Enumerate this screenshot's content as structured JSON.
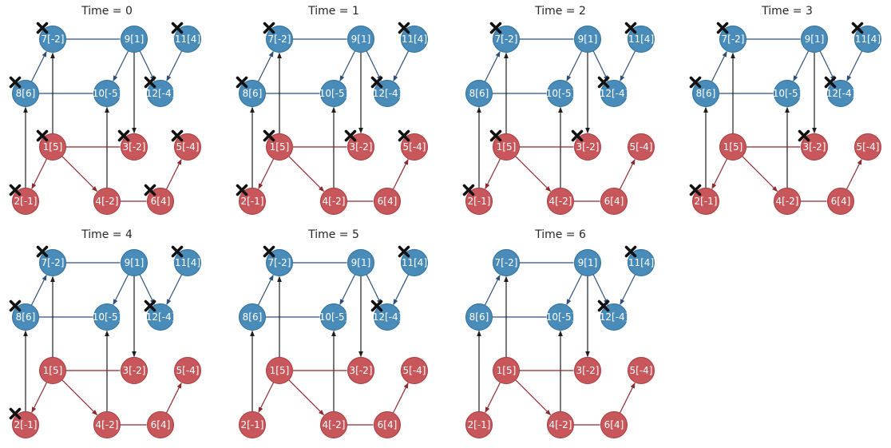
{
  "colors": {
    "blue_node": "#3f86b5",
    "blue_node_stroke": "#2f6e99",
    "red_node": "#c44e52",
    "red_node_stroke": "#a83b3f",
    "blue_edge": "#2c4f7a",
    "red_edge": "#8c2a2e",
    "cross_edge": "#1e1e1e",
    "marker": "#111111",
    "title": "#262626"
  },
  "nodes": [
    {
      "id": "1",
      "label": "1[5]",
      "group": "red"
    },
    {
      "id": "2",
      "label": "2[-1]",
      "group": "red"
    },
    {
      "id": "3",
      "label": "3[-2]",
      "group": "red"
    },
    {
      "id": "4",
      "label": "4[-2]",
      "group": "red"
    },
    {
      "id": "5",
      "label": "5[-4]",
      "group": "red"
    },
    {
      "id": "6",
      "label": "6[4]",
      "group": "red"
    },
    {
      "id": "7",
      "label": "7[-2]",
      "group": "blue"
    },
    {
      "id": "8",
      "label": "8[6]",
      "group": "blue"
    },
    {
      "id": "9",
      "label": "9[1]",
      "group": "blue"
    },
    {
      "id": "10",
      "label": "10[-5]",
      "group": "blue"
    },
    {
      "id": "11",
      "label": "11[4]",
      "group": "blue"
    },
    {
      "id": "12",
      "label": "12[-4]",
      "group": "blue"
    }
  ],
  "edges": [
    {
      "from": "7",
      "to": "9",
      "kind": "blue",
      "arrow": false
    },
    {
      "from": "8",
      "to": "7",
      "kind": "blue",
      "arrow": true
    },
    {
      "from": "8",
      "to": "10",
      "kind": "blue",
      "arrow": false
    },
    {
      "from": "9",
      "to": "10",
      "kind": "blue",
      "arrow": true
    },
    {
      "from": "9",
      "to": "12",
      "kind": "blue",
      "arrow": true
    },
    {
      "from": "11",
      "to": "12",
      "kind": "blue",
      "arrow": true
    },
    {
      "from": "9",
      "to": "3",
      "kind": "cross",
      "arrow": true
    },
    {
      "from": "1",
      "to": "7",
      "kind": "cross",
      "arrow": true
    },
    {
      "from": "2",
      "to": "8",
      "kind": "cross",
      "arrow": true
    },
    {
      "from": "4",
      "to": "10",
      "kind": "cross",
      "arrow": true
    },
    {
      "from": "1",
      "to": "3",
      "kind": "red",
      "arrow": false
    },
    {
      "from": "1",
      "to": "2",
      "kind": "red",
      "arrow": true
    },
    {
      "from": "1",
      "to": "4",
      "kind": "red",
      "arrow": true
    },
    {
      "from": "4",
      "to": "6",
      "kind": "red",
      "arrow": false
    },
    {
      "from": "6",
      "to": "5",
      "kind": "red",
      "arrow": true
    }
  ],
  "panels": [
    {
      "title": "Time = 0",
      "marked": [
        "7",
        "8",
        "11",
        "12",
        "1",
        "3",
        "5",
        "2",
        "6"
      ]
    },
    {
      "title": "Time = 1",
      "marked": [
        "7",
        "8",
        "11",
        "12",
        "1",
        "3",
        "5",
        "2"
      ]
    },
    {
      "title": "Time = 2",
      "marked": [
        "7",
        "11",
        "12",
        "1",
        "3",
        "2"
      ]
    },
    {
      "title": "Time = 3",
      "marked": [
        "7",
        "8",
        "11",
        "12",
        "3",
        "2"
      ]
    },
    {
      "title": "Time = 4",
      "marked": [
        "7",
        "8",
        "11",
        "12",
        "2"
      ]
    },
    {
      "title": "Time = 5",
      "marked": [
        "7",
        "11",
        "12"
      ]
    },
    {
      "title": "Time = 6",
      "marked": [
        "11",
        "12"
      ]
    }
  ]
}
